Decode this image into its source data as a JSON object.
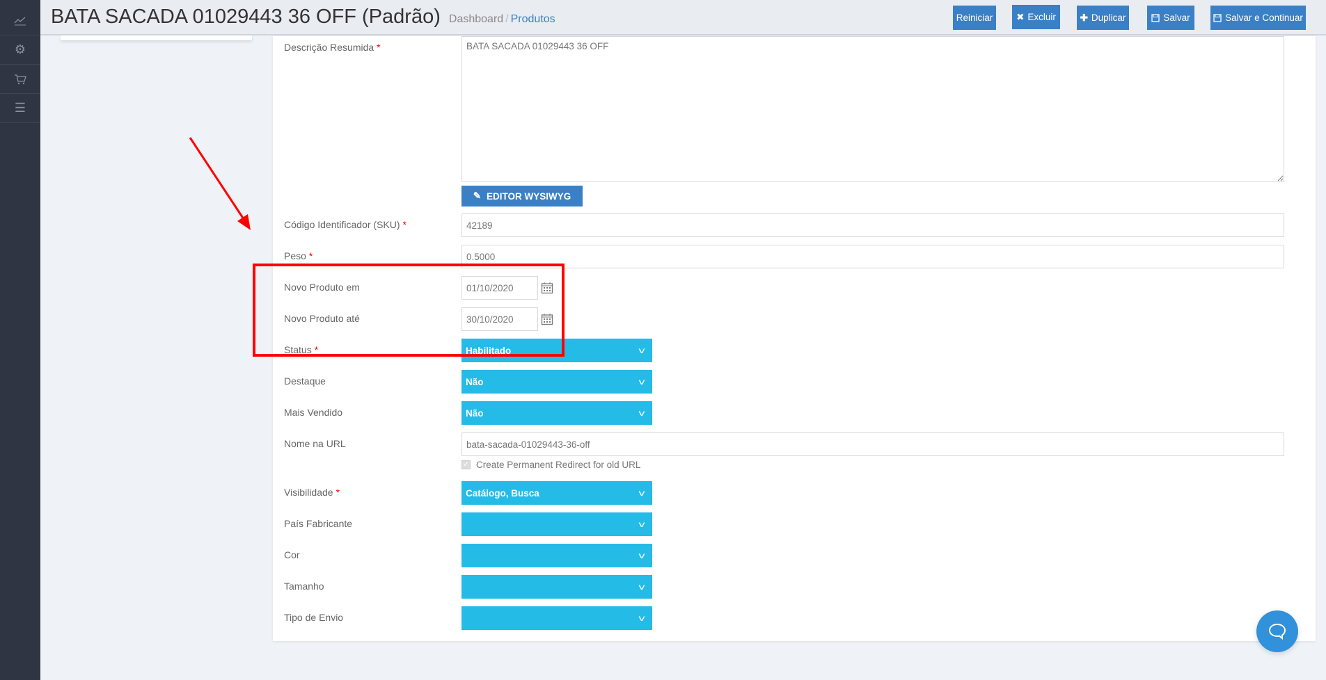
{
  "sidebar": {
    "items": [
      {
        "icon": "chart-line-icon"
      },
      {
        "icon": "gear-icon"
      },
      {
        "icon": "cart-icon"
      },
      {
        "icon": "menu-icon"
      }
    ]
  },
  "header": {
    "title": "BATA SACADA 01029443 36 OFF (Padrão)",
    "breadcrumb": [
      "Dashboard",
      "/",
      "Produtos"
    ]
  },
  "toolbar": {
    "reset": "Reiniciar",
    "delete": "Excluir",
    "duplicate": "Duplicar",
    "save": "Salvar",
    "save_continue": "Salvar e Continuar"
  },
  "form": {
    "short_description": {
      "label": "Descrição Resumida",
      "required": "*",
      "value": "BATA SACADA 01029443 36 OFF",
      "editor_button": "EDITOR WYSIWYG"
    },
    "sku": {
      "label": "Código Identificador (SKU)",
      "required": "*",
      "value": "42189"
    },
    "weight": {
      "label": "Peso",
      "required": "*",
      "value": "0.5000"
    },
    "new_from": {
      "label": "Novo Produto em",
      "value": "01/10/2020"
    },
    "new_to": {
      "label": "Novo Produto até",
      "value": "30/10/2020"
    },
    "status": {
      "label": "Status",
      "required": "*",
      "value": "Habilitado"
    },
    "featured": {
      "label": "Destaque",
      "value": "Não"
    },
    "bestseller": {
      "label": "Mais Vendido",
      "value": "Não"
    },
    "url_key": {
      "label": "Nome na URL",
      "value": "bata-sacada-01029443-36-off",
      "redirect_label": "Create Permanent Redirect for old URL",
      "redirect_checked": true
    },
    "visibility": {
      "label": "Visibilidade",
      "required": "*",
      "value": "Catálogo, Busca"
    },
    "country": {
      "label": "País Fabricante",
      "value": ""
    },
    "color": {
      "label": "Cor",
      "value": ""
    },
    "size": {
      "label": "Tamanho",
      "value": ""
    },
    "shipping_type": {
      "label": "Tipo de Envio",
      "value": ""
    }
  },
  "colors": {
    "primary": "#3a80c6",
    "select": "#25bbe7",
    "annotation": "#ff0000",
    "sidebar": "#2f3542"
  }
}
